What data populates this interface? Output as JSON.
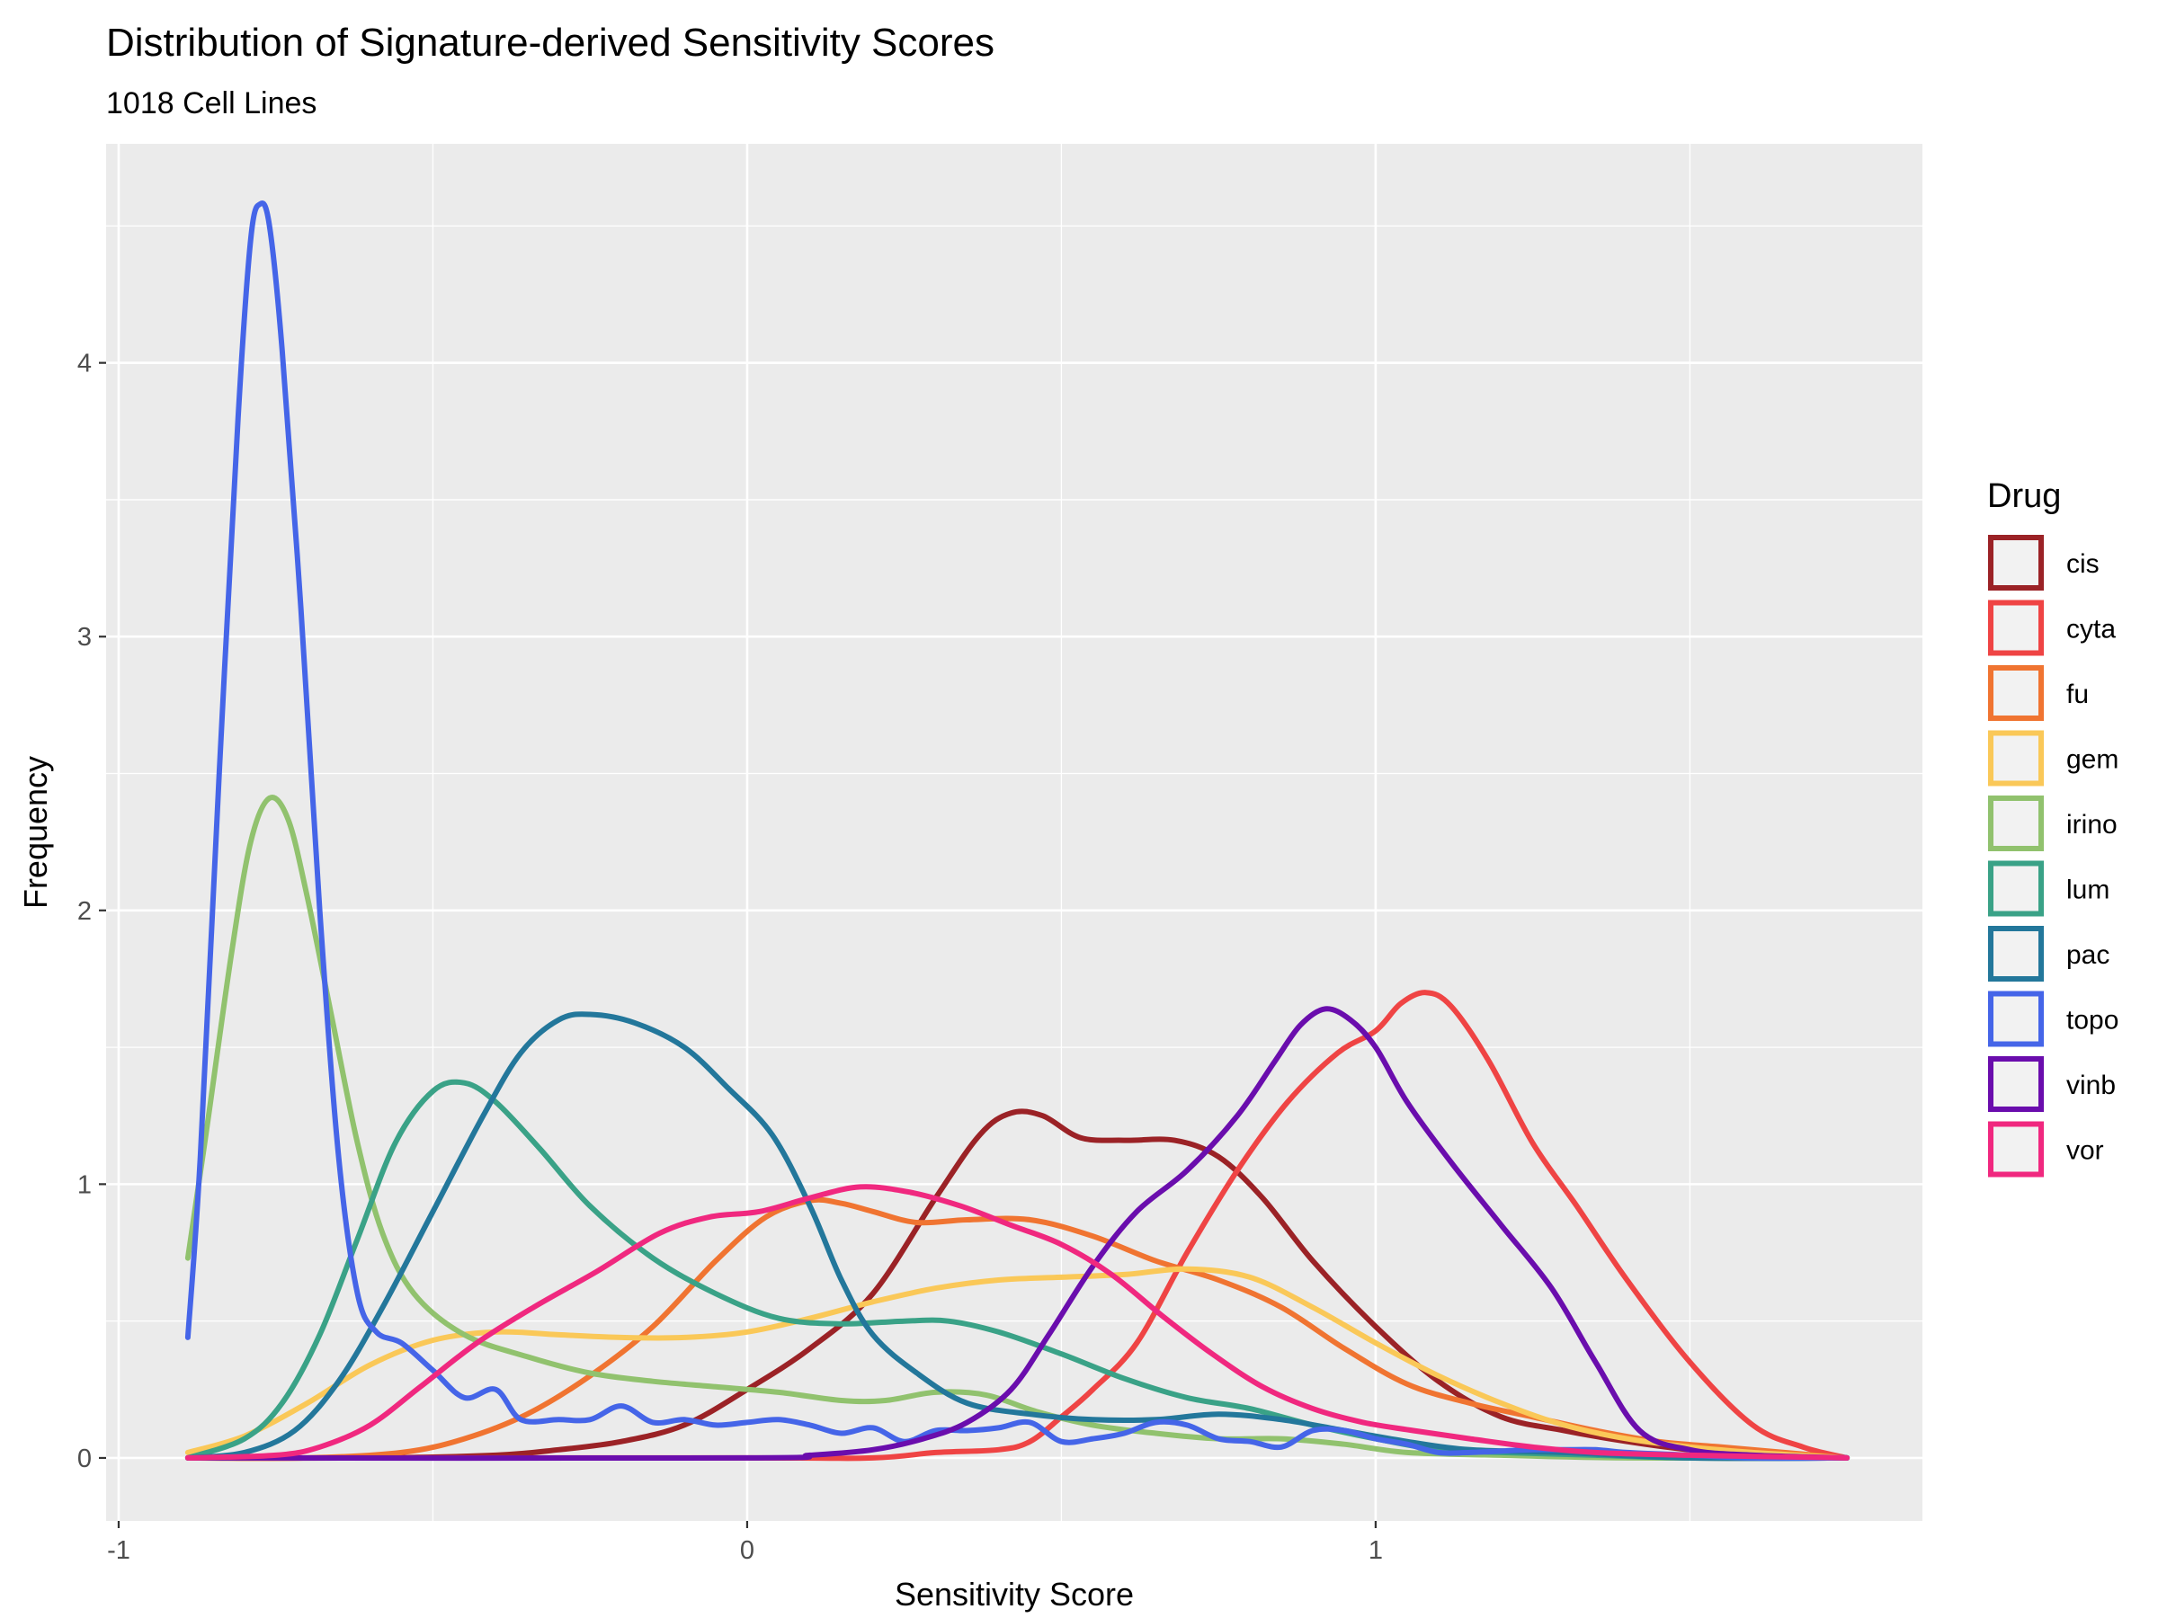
{
  "chart_data": {
    "type": "line",
    "title": "Distribution of Signature-derived Sensitivity Scores",
    "subtitle": "1018 Cell Lines",
    "xlabel": "Sensitivity Score",
    "ylabel": "Frequency",
    "xlim": [
      -1.02,
      1.87
    ],
    "ylim": [
      -0.23,
      4.8
    ],
    "x_ticks": [
      -1,
      0,
      1
    ],
    "x_tick_labels": [
      "-1",
      "0",
      "1"
    ],
    "y_ticks": [
      0,
      1,
      2,
      3,
      4
    ],
    "y_tick_labels": [
      "0",
      "1",
      "2",
      "3",
      "4"
    ],
    "grid": true,
    "panel_background": "#ebebeb",
    "legend": {
      "title": "Drug",
      "position": "right"
    },
    "series": [
      {
        "name": "cis",
        "color": "#9b2226",
        "points": [
          [
            -0.89,
            0
          ],
          [
            -0.6,
            0
          ],
          [
            -0.4,
            0.01
          ],
          [
            -0.3,
            0.03
          ],
          [
            -0.2,
            0.06
          ],
          [
            -0.1,
            0.12
          ],
          [
            0,
            0.25
          ],
          [
            0.1,
            0.4
          ],
          [
            0.2,
            0.6
          ],
          [
            0.3,
            0.95
          ],
          [
            0.37,
            1.18
          ],
          [
            0.42,
            1.26
          ],
          [
            0.47,
            1.25
          ],
          [
            0.53,
            1.17
          ],
          [
            0.6,
            1.16
          ],
          [
            0.68,
            1.16
          ],
          [
            0.75,
            1.1
          ],
          [
            0.82,
            0.95
          ],
          [
            0.9,
            0.72
          ],
          [
            1,
            0.48
          ],
          [
            1.1,
            0.28
          ],
          [
            1.2,
            0.15
          ],
          [
            1.3,
            0.1
          ],
          [
            1.4,
            0.06
          ],
          [
            1.5,
            0.03
          ],
          [
            1.6,
            0.02
          ],
          [
            1.75,
            0
          ]
        ]
      },
      {
        "name": "cyta",
        "color": "#ef4444",
        "points": [
          [
            -0.89,
            0
          ],
          [
            0,
            0
          ],
          [
            0.2,
            0
          ],
          [
            0.3,
            0.02
          ],
          [
            0.4,
            0.03
          ],
          [
            0.45,
            0.06
          ],
          [
            0.5,
            0.15
          ],
          [
            0.55,
            0.25
          ],
          [
            0.62,
            0.42
          ],
          [
            0.7,
            0.75
          ],
          [
            0.78,
            1.05
          ],
          [
            0.86,
            1.3
          ],
          [
            0.94,
            1.48
          ],
          [
            1,
            1.56
          ],
          [
            1.04,
            1.66
          ],
          [
            1.08,
            1.7
          ],
          [
            1.12,
            1.65
          ],
          [
            1.18,
            1.45
          ],
          [
            1.25,
            1.15
          ],
          [
            1.32,
            0.92
          ],
          [
            1.4,
            0.65
          ],
          [
            1.5,
            0.35
          ],
          [
            1.6,
            0.12
          ],
          [
            1.68,
            0.04
          ],
          [
            1.75,
            0
          ]
        ]
      },
      {
        "name": "fu",
        "color": "#f07431",
        "points": [
          [
            -0.89,
            0
          ],
          [
            -0.7,
            0
          ],
          [
            -0.55,
            0.02
          ],
          [
            -0.45,
            0.07
          ],
          [
            -0.35,
            0.16
          ],
          [
            -0.25,
            0.3
          ],
          [
            -0.15,
            0.48
          ],
          [
            -0.05,
            0.72
          ],
          [
            0.03,
            0.88
          ],
          [
            0.1,
            0.94
          ],
          [
            0.15,
            0.93
          ],
          [
            0.2,
            0.9
          ],
          [
            0.27,
            0.86
          ],
          [
            0.35,
            0.87
          ],
          [
            0.45,
            0.87
          ],
          [
            0.55,
            0.81
          ],
          [
            0.65,
            0.72
          ],
          [
            0.75,
            0.65
          ],
          [
            0.85,
            0.55
          ],
          [
            0.95,
            0.4
          ],
          [
            1.05,
            0.27
          ],
          [
            1.15,
            0.2
          ],
          [
            1.25,
            0.15
          ],
          [
            1.35,
            0.1
          ],
          [
            1.45,
            0.06
          ],
          [
            1.55,
            0.04
          ],
          [
            1.65,
            0.02
          ],
          [
            1.75,
            0
          ]
        ]
      },
      {
        "name": "gem",
        "color": "#fac858",
        "points": [
          [
            -0.89,
            0.02
          ],
          [
            -0.8,
            0.08
          ],
          [
            -0.7,
            0.2
          ],
          [
            -0.6,
            0.34
          ],
          [
            -0.5,
            0.43
          ],
          [
            -0.4,
            0.46
          ],
          [
            -0.3,
            0.45
          ],
          [
            -0.2,
            0.44
          ],
          [
            -0.1,
            0.44
          ],
          [
            0,
            0.46
          ],
          [
            0.1,
            0.51
          ],
          [
            0.2,
            0.57
          ],
          [
            0.3,
            0.62
          ],
          [
            0.4,
            0.65
          ],
          [
            0.5,
            0.66
          ],
          [
            0.6,
            0.67
          ],
          [
            0.7,
            0.69
          ],
          [
            0.8,
            0.66
          ],
          [
            0.9,
            0.55
          ],
          [
            1,
            0.42
          ],
          [
            1.1,
            0.3
          ],
          [
            1.2,
            0.2
          ],
          [
            1.3,
            0.12
          ],
          [
            1.4,
            0.07
          ],
          [
            1.5,
            0.04
          ],
          [
            1.6,
            0.02
          ],
          [
            1.75,
            0
          ]
        ]
      },
      {
        "name": "irino",
        "color": "#91c26e",
        "points": [
          [
            -0.89,
            0.73
          ],
          [
            -0.86,
            1.2
          ],
          [
            -0.82,
            1.85
          ],
          [
            -0.79,
            2.25
          ],
          [
            -0.76,
            2.41
          ],
          [
            -0.73,
            2.33
          ],
          [
            -0.7,
            2.05
          ],
          [
            -0.66,
            1.6
          ],
          [
            -0.62,
            1.15
          ],
          [
            -0.58,
            0.82
          ],
          [
            -0.53,
            0.6
          ],
          [
            -0.45,
            0.45
          ],
          [
            -0.35,
            0.37
          ],
          [
            -0.25,
            0.31
          ],
          [
            -0.15,
            0.28
          ],
          [
            -0.05,
            0.26
          ],
          [
            0.05,
            0.24
          ],
          [
            0.15,
            0.21
          ],
          [
            0.22,
            0.21
          ],
          [
            0.3,
            0.24
          ],
          [
            0.38,
            0.23
          ],
          [
            0.46,
            0.17
          ],
          [
            0.55,
            0.12
          ],
          [
            0.65,
            0.09
          ],
          [
            0.75,
            0.07
          ],
          [
            0.85,
            0.07
          ],
          [
            0.95,
            0.05
          ],
          [
            1.05,
            0.02
          ],
          [
            1.2,
            0.01
          ],
          [
            1.4,
            0
          ],
          [
            1.75,
            0
          ]
        ]
      },
      {
        "name": "lum",
        "color": "#3aa287",
        "points": [
          [
            -0.89,
            0
          ],
          [
            -0.8,
            0.07
          ],
          [
            -0.74,
            0.2
          ],
          [
            -0.68,
            0.45
          ],
          [
            -0.62,
            0.8
          ],
          [
            -0.56,
            1.15
          ],
          [
            -0.5,
            1.34
          ],
          [
            -0.45,
            1.37
          ],
          [
            -0.4,
            1.3
          ],
          [
            -0.33,
            1.13
          ],
          [
            -0.25,
            0.92
          ],
          [
            -0.15,
            0.73
          ],
          [
            -0.05,
            0.6
          ],
          [
            0.05,
            0.51
          ],
          [
            0.15,
            0.49
          ],
          [
            0.25,
            0.5
          ],
          [
            0.32,
            0.5
          ],
          [
            0.4,
            0.46
          ],
          [
            0.5,
            0.38
          ],
          [
            0.6,
            0.29
          ],
          [
            0.7,
            0.22
          ],
          [
            0.8,
            0.18
          ],
          [
            0.9,
            0.12
          ],
          [
            1,
            0.07
          ],
          [
            1.1,
            0.03
          ],
          [
            1.2,
            0.02
          ],
          [
            1.35,
            0.01
          ],
          [
            1.5,
            0
          ],
          [
            1.75,
            0
          ]
        ]
      },
      {
        "name": "pac",
        "color": "#23779b",
        "points": [
          [
            -0.89,
            0
          ],
          [
            -0.8,
            0.02
          ],
          [
            -0.72,
            0.1
          ],
          [
            -0.65,
            0.28
          ],
          [
            -0.58,
            0.55
          ],
          [
            -0.5,
            0.9
          ],
          [
            -0.42,
            1.25
          ],
          [
            -0.36,
            1.48
          ],
          [
            -0.3,
            1.6
          ],
          [
            -0.25,
            1.62
          ],
          [
            -0.18,
            1.59
          ],
          [
            -0.1,
            1.5
          ],
          [
            -0.03,
            1.35
          ],
          [
            0.04,
            1.18
          ],
          [
            0.1,
            0.92
          ],
          [
            0.15,
            0.65
          ],
          [
            0.2,
            0.45
          ],
          [
            0.27,
            0.31
          ],
          [
            0.35,
            0.2
          ],
          [
            0.45,
            0.16
          ],
          [
            0.55,
            0.14
          ],
          [
            0.65,
            0.14
          ],
          [
            0.75,
            0.16
          ],
          [
            0.85,
            0.14
          ],
          [
            0.95,
            0.1
          ],
          [
            1.05,
            0.06
          ],
          [
            1.15,
            0.03
          ],
          [
            1.3,
            0.02
          ],
          [
            1.5,
            0
          ],
          [
            1.75,
            0
          ]
        ]
      },
      {
        "name": "topo",
        "color": "#4565e8",
        "points": [
          [
            -0.89,
            0.44
          ],
          [
            -0.87,
            1.1
          ],
          [
            -0.84,
            2.5
          ],
          [
            -0.81,
            3.8
          ],
          [
            -0.79,
            4.45
          ],
          [
            -0.775,
            4.58
          ],
          [
            -0.76,
            4.5
          ],
          [
            -0.74,
            4.05
          ],
          [
            -0.71,
            3.1
          ],
          [
            -0.68,
            2.0
          ],
          [
            -0.65,
            1.1
          ],
          [
            -0.62,
            0.6
          ],
          [
            -0.59,
            0.46
          ],
          [
            -0.55,
            0.42
          ],
          [
            -0.5,
            0.32
          ],
          [
            -0.45,
            0.22
          ],
          [
            -0.4,
            0.25
          ],
          [
            -0.36,
            0.14
          ],
          [
            -0.3,
            0.14
          ],
          [
            -0.25,
            0.14
          ],
          [
            -0.2,
            0.19
          ],
          [
            -0.15,
            0.13
          ],
          [
            -0.1,
            0.14
          ],
          [
            -0.05,
            0.12
          ],
          [
            0,
            0.13
          ],
          [
            0.05,
            0.14
          ],
          [
            0.1,
            0.12
          ],
          [
            0.15,
            0.09
          ],
          [
            0.2,
            0.11
          ],
          [
            0.25,
            0.06
          ],
          [
            0.3,
            0.1
          ],
          [
            0.35,
            0.1
          ],
          [
            0.4,
            0.11
          ],
          [
            0.45,
            0.13
          ],
          [
            0.5,
            0.06
          ],
          [
            0.55,
            0.07
          ],
          [
            0.6,
            0.09
          ],
          [
            0.65,
            0.13
          ],
          [
            0.7,
            0.12
          ],
          [
            0.75,
            0.07
          ],
          [
            0.8,
            0.06
          ],
          [
            0.85,
            0.04
          ],
          [
            0.9,
            0.1
          ],
          [
            0.95,
            0.1
          ],
          [
            1,
            0.07
          ],
          [
            1.05,
            0.05
          ],
          [
            1.1,
            0.02
          ],
          [
            1.15,
            0.02
          ],
          [
            1.25,
            0.03
          ],
          [
            1.3,
            0.03
          ],
          [
            1.35,
            0.03
          ],
          [
            1.4,
            0.02
          ],
          [
            1.5,
            0.01
          ],
          [
            1.6,
            0
          ],
          [
            1.75,
            0
          ]
        ]
      },
      {
        "name": "vinb",
        "color": "#6a0dad",
        "points": [
          [
            -0.89,
            0
          ],
          [
            0,
            0
          ],
          [
            0.1,
            0.01
          ],
          [
            0.2,
            0.03
          ],
          [
            0.28,
            0.07
          ],
          [
            0.35,
            0.13
          ],
          [
            0.42,
            0.25
          ],
          [
            0.48,
            0.45
          ],
          [
            0.55,
            0.7
          ],
          [
            0.62,
            0.9
          ],
          [
            0.7,
            1.05
          ],
          [
            0.78,
            1.25
          ],
          [
            0.84,
            1.45
          ],
          [
            0.88,
            1.58
          ],
          [
            0.92,
            1.64
          ],
          [
            0.96,
            1.6
          ],
          [
            1,
            1.5
          ],
          [
            1.05,
            1.3
          ],
          [
            1.12,
            1.08
          ],
          [
            1.2,
            0.85
          ],
          [
            1.28,
            0.62
          ],
          [
            1.35,
            0.35
          ],
          [
            1.42,
            0.1
          ],
          [
            1.5,
            0.03
          ],
          [
            1.6,
            0.01
          ],
          [
            1.75,
            0
          ]
        ]
      },
      {
        "name": "vor",
        "color": "#f0287f",
        "points": [
          [
            -0.89,
            0
          ],
          [
            -0.75,
            0.01
          ],
          [
            -0.68,
            0.04
          ],
          [
            -0.6,
            0.12
          ],
          [
            -0.52,
            0.26
          ],
          [
            -0.43,
            0.42
          ],
          [
            -0.34,
            0.55
          ],
          [
            -0.24,
            0.68
          ],
          [
            -0.14,
            0.82
          ],
          [
            -0.06,
            0.88
          ],
          [
            0.02,
            0.9
          ],
          [
            0.1,
            0.95
          ],
          [
            0.18,
            0.99
          ],
          [
            0.26,
            0.97
          ],
          [
            0.34,
            0.92
          ],
          [
            0.42,
            0.85
          ],
          [
            0.5,
            0.78
          ],
          [
            0.58,
            0.67
          ],
          [
            0.66,
            0.52
          ],
          [
            0.74,
            0.38
          ],
          [
            0.82,
            0.26
          ],
          [
            0.9,
            0.18
          ],
          [
            0.98,
            0.13
          ],
          [
            1.06,
            0.1
          ],
          [
            1.15,
            0.07
          ],
          [
            1.25,
            0.04
          ],
          [
            1.35,
            0.02
          ],
          [
            1.5,
            0.01
          ],
          [
            1.75,
            0
          ]
        ]
      }
    ]
  }
}
